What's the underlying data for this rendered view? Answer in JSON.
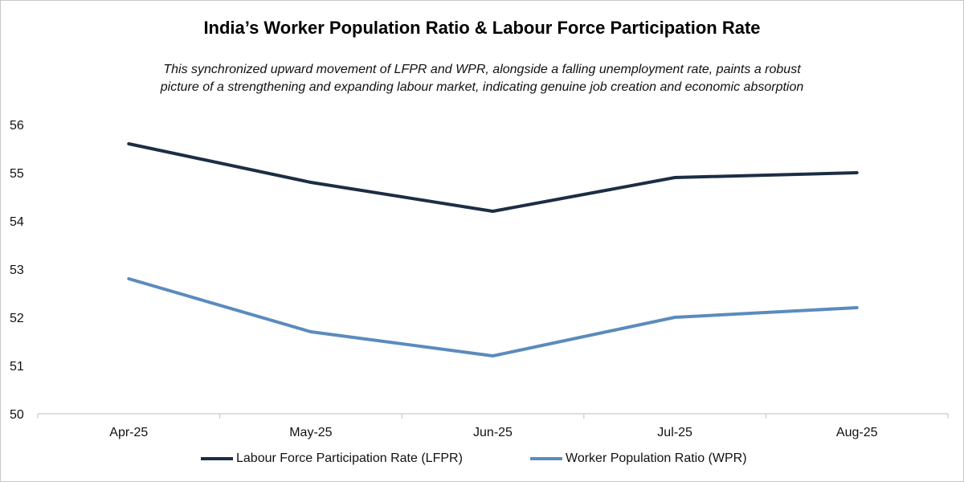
{
  "title": "India’s Worker Population Ratio & Labour Force Participation Rate",
  "subtitle_line1": "This synchronized upward movement of LFPR and WPR, alongside a falling unemployment rate, paints a robust",
  "subtitle_line2": "picture of a strengthening and expanding labour market, indicating genuine job creation and economic absorption",
  "chart_data": {
    "type": "line",
    "title": "India’s Worker Population Ratio & Labour Force Participation Rate",
    "categories": [
      "Apr-25",
      "May-25",
      "Jun-25",
      "Jul-25",
      "Aug-25"
    ],
    "series": [
      {
        "name": "Labour Force Participation Rate (LFPR)",
        "values": [
          55.6,
          54.8,
          54.2,
          54.9,
          55.0
        ],
        "color": "#1c2e44"
      },
      {
        "name": "Worker Population Ratio (WPR)",
        "values": [
          52.8,
          51.7,
          51.2,
          52.0,
          52.2
        ],
        "color": "#5b8bbd"
      }
    ],
    "ylim": [
      50,
      56
    ],
    "yticks": [
      "50",
      "51",
      "52",
      "53",
      "54",
      "55",
      "56"
    ],
    "xlabel": "",
    "ylabel": "",
    "grid": false,
    "legend": "bottom"
  }
}
